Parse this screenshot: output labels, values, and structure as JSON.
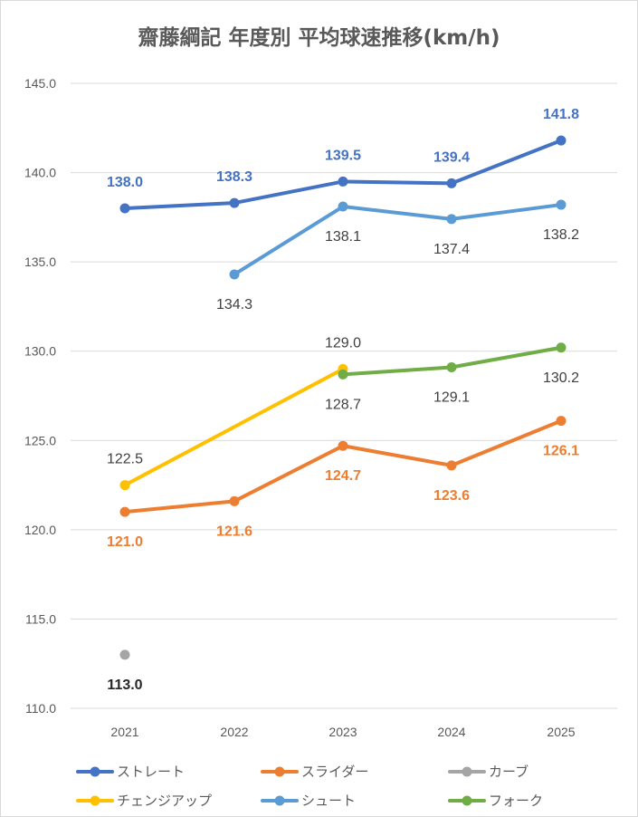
{
  "chart_data": {
    "type": "line",
    "title": "齋藤綱記 年度別 平均球速推移(km/h)",
    "x": [
      "2021",
      "2022",
      "2023",
      "2024",
      "2025"
    ],
    "ylim": [
      110.0,
      145.0
    ],
    "yticks": [
      "145.0",
      "140.0",
      "135.0",
      "130.0",
      "125.0",
      "120.0",
      "115.0",
      "110.0"
    ],
    "grid": true,
    "legend_position": "bottom",
    "series": [
      {
        "name": "ストレート",
        "color": "#4472c4",
        "values": [
          138.0,
          138.3,
          139.5,
          139.4,
          141.8
        ],
        "labels": [
          "138.0",
          "138.3",
          "139.5",
          "139.4",
          "141.8"
        ],
        "label_color": "#4472c4",
        "label_pos": "above",
        "bold": true
      },
      {
        "name": "スライダー",
        "color": "#ed7d31",
        "values": [
          121.0,
          121.6,
          124.7,
          123.6,
          126.1
        ],
        "labels": [
          "121.0",
          "121.6",
          "124.7",
          "123.6",
          "126.1"
        ],
        "label_color": "#ed7d31",
        "label_pos": "below",
        "bold": true
      },
      {
        "name": "カーブ",
        "color": "#a5a5a5",
        "values": [
          113.0,
          null,
          null,
          null,
          null
        ],
        "labels": [
          "113.0",
          null,
          null,
          null,
          null
        ],
        "label_color": "#262626",
        "label_pos": "below",
        "bold": true
      },
      {
        "name": "チェンジアップ",
        "color": "#ffc000",
        "values": [
          122.5,
          null,
          129.0,
          null,
          null
        ],
        "labels": [
          "122.5",
          null,
          "129.0",
          null,
          null
        ],
        "label_color": "#404040",
        "label_pos": "above",
        "bold": false
      },
      {
        "name": "シュート",
        "color": "#5b9bd5",
        "values": [
          null,
          134.3,
          138.1,
          137.4,
          138.2
        ],
        "labels": [
          null,
          "134.3",
          "138.1",
          "137.4",
          "138.2"
        ],
        "label_color": "#404040",
        "label_pos": "below",
        "bold": false
      },
      {
        "name": "フォーク",
        "color": "#70ad47",
        "values": [
          null,
          null,
          128.7,
          129.1,
          130.2
        ],
        "labels": [
          null,
          null,
          "128.7",
          "129.1",
          "130.2"
        ],
        "label_color": "#404040",
        "label_pos": "below",
        "bold": false
      }
    ]
  }
}
